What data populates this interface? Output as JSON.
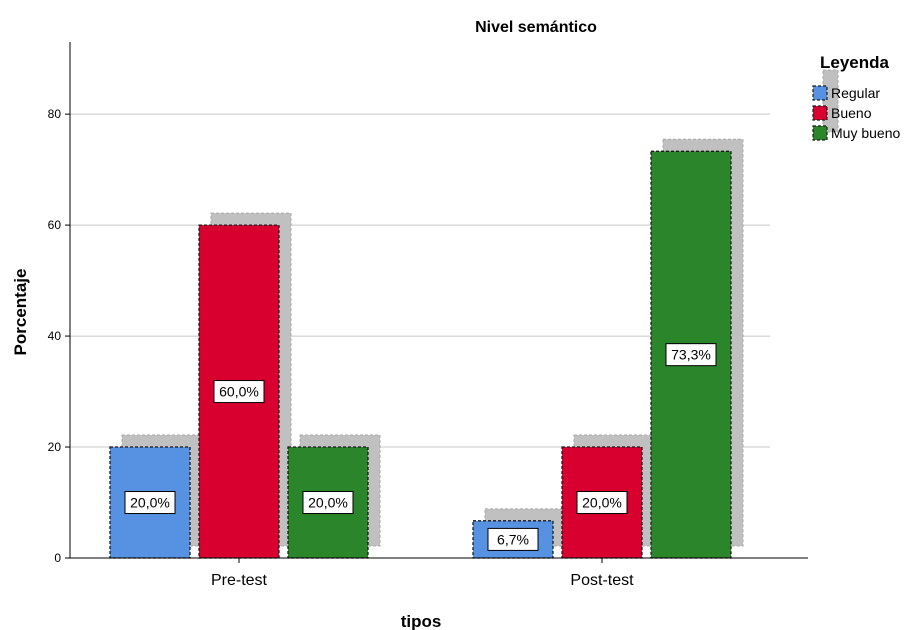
{
  "chart_data": {
    "type": "bar",
    "title": "Nivel semántico",
    "xlabel": "tipos",
    "ylabel": "Porcentaje",
    "categories": [
      "Pre-test",
      "Post-test"
    ],
    "ylim": [
      0,
      93
    ],
    "yticks": [
      0,
      20,
      40,
      60,
      80
    ],
    "grid": true,
    "legend_title": "Leyenda",
    "legend_position": "top-right",
    "series": [
      {
        "name": "Regular",
        "color": "#5691e2",
        "values": [
          20.0,
          6.7
        ],
        "labels": [
          "20,0%",
          "6,7%"
        ]
      },
      {
        "name": "Bueno",
        "color": "#d7002f",
        "values": [
          60.0,
          20.0
        ],
        "labels": [
          "60,0%",
          "20,0%"
        ]
      },
      {
        "name": "Muy bueno",
        "color": "#2b852a",
        "values": [
          20.0,
          73.3
        ],
        "labels": [
          "20,0%",
          "73,3%"
        ]
      }
    ]
  }
}
